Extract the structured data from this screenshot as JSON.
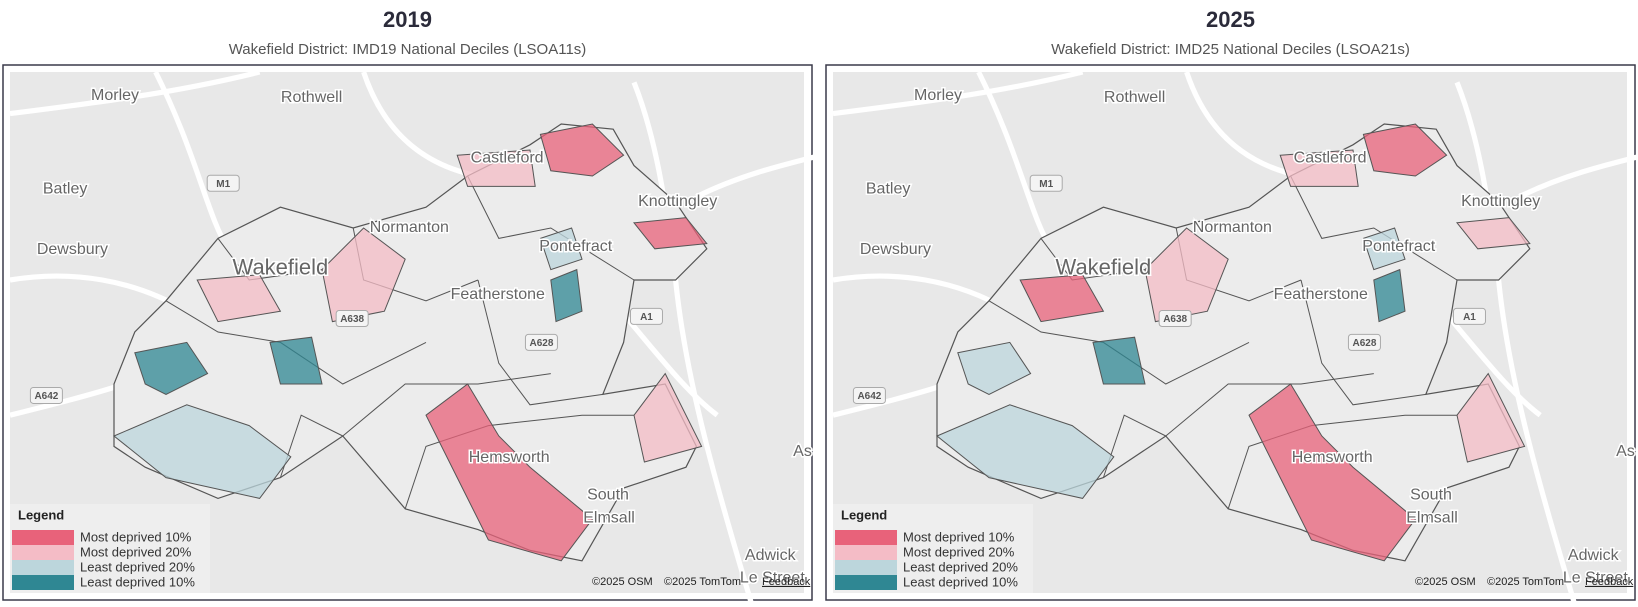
{
  "panels": [
    {
      "title": "2019",
      "subtitle": "Wakefield District: IMD19 National Deciles (LSOA11s)",
      "places": [
        "Morley",
        "Rothwell",
        "Batley",
        "Dewsbury",
        "Wakefield",
        "Normanton",
        "Castleford",
        "Knottingley",
        "Pontefract",
        "Featherstone",
        "Hemsworth",
        "South",
        "Elmsall",
        "Adwick",
        "Le Street",
        "As"
      ],
      "roads": [
        "M1",
        "A638",
        "A628",
        "A1",
        "A642"
      ],
      "legend": {
        "title": "Legend",
        "items": [
          {
            "label": "Most deprived 10%",
            "color": "#e8627a"
          },
          {
            "label": "Most deprived 20%",
            "color": "#f4bcc6"
          },
          {
            "label": "Least deprived 20%",
            "color": "#bcd6dc"
          },
          {
            "label": "Least deprived 10%",
            "color": "#2f8793"
          }
        ]
      },
      "attribution": [
        "©2025 OSM",
        "©2025 TomTom",
        "Feedback"
      ]
    },
    {
      "title": "2025",
      "subtitle": "Wakefield District: IMD25 National Deciles (LSOA21s)",
      "places": [
        "Morley",
        "Rothwell",
        "Batley",
        "Dewsbury",
        "Wakefield",
        "Normanton",
        "Castleford",
        "Knottingley",
        "Pontefract",
        "Featherstone",
        "Hemsworth",
        "South",
        "Elmsall",
        "Adwick",
        "Le Street",
        "As"
      ],
      "roads": [
        "M1",
        "A638",
        "A628",
        "A1",
        "A642"
      ],
      "legend": {
        "title": "Legend",
        "items": [
          {
            "label": "Most deprived 10%",
            "color": "#e8627a"
          },
          {
            "label": "Most deprived 20%",
            "color": "#f4bcc6"
          },
          {
            "label": "Least deprived 20%",
            "color": "#bcd6dc"
          },
          {
            "label": "Least deprived 10%",
            "color": "#2f8793"
          }
        ]
      },
      "attribution": [
        "©2025 OSM",
        "©2025 TomTom",
        "Feedback"
      ]
    }
  ]
}
